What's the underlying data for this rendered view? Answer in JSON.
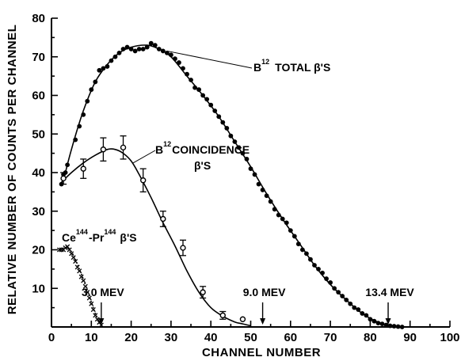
{
  "chart_data": {
    "type": "scatter",
    "xlabel": "CHANNEL NUMBER",
    "ylabel": "RELATIVE NUMBER OF COUNTS PER CHANNEL",
    "xlim": [
      0,
      100
    ],
    "ylim": [
      0,
      80
    ],
    "x_ticks": [
      "0",
      "10",
      "20",
      "30",
      "40",
      "50",
      "60",
      "70",
      "80",
      "90",
      "100"
    ],
    "y_ticks": [
      "10",
      "20",
      "30",
      "40",
      "50",
      "60",
      "70",
      "80"
    ],
    "series": [
      {
        "name": "B12 TOTAL β'S",
        "marker": "filled-circle",
        "points": [
          [
            2.5,
            37
          ],
          [
            3,
            39.5
          ],
          [
            3.5,
            40
          ],
          [
            4,
            42
          ],
          [
            6,
            48.5
          ],
          [
            7,
            52
          ],
          [
            8,
            55
          ],
          [
            9,
            58.5
          ],
          [
            10,
            61.5
          ],
          [
            11,
            63.5
          ],
          [
            12,
            66.5
          ],
          [
            13,
            67
          ],
          [
            14,
            67.5
          ],
          [
            15,
            69
          ],
          [
            16,
            70
          ],
          [
            17,
            71
          ],
          [
            18,
            72
          ],
          [
            19,
            72.5
          ],
          [
            20,
            72
          ],
          [
            21,
            71.5
          ],
          [
            22,
            72
          ],
          [
            23,
            72
          ],
          [
            24,
            72.5
          ],
          [
            25,
            73.5
          ],
          [
            26,
            73
          ],
          [
            27,
            72
          ],
          [
            28,
            71.5
          ],
          [
            29,
            71
          ],
          [
            30,
            70.5
          ],
          [
            31,
            69.5
          ],
          [
            32,
            68.5
          ],
          [
            33,
            67
          ],
          [
            34,
            65.5
          ],
          [
            35,
            64
          ],
          [
            36,
            62
          ],
          [
            37,
            61.5
          ],
          [
            38,
            60
          ],
          [
            39,
            59
          ],
          [
            40,
            57.5
          ],
          [
            41,
            56
          ],
          [
            42,
            54.5
          ],
          [
            43,
            53
          ],
          [
            44,
            51.5
          ],
          [
            45,
            49.5
          ],
          [
            46,
            48
          ],
          [
            47,
            46.5
          ],
          [
            48,
            45
          ],
          [
            49,
            43.5
          ],
          [
            50,
            41
          ],
          [
            51,
            39.5
          ],
          [
            52,
            37
          ],
          [
            53,
            35.5
          ],
          [
            54,
            34
          ],
          [
            55,
            32.5
          ],
          [
            56,
            30.5
          ],
          [
            57,
            29
          ],
          [
            58,
            28
          ],
          [
            59,
            27
          ],
          [
            60,
            25
          ],
          [
            61,
            23.5
          ],
          [
            62,
            21.5
          ],
          [
            63,
            20
          ],
          [
            64,
            19
          ],
          [
            65,
            17.5
          ],
          [
            66,
            16
          ],
          [
            67,
            15
          ],
          [
            68,
            14
          ],
          [
            69,
            12.5
          ],
          [
            70,
            11.5
          ],
          [
            71,
            10
          ],
          [
            72,
            9
          ],
          [
            73,
            8
          ],
          [
            74,
            7
          ],
          [
            75,
            6
          ],
          [
            76,
            5
          ],
          [
            77,
            4.5
          ],
          [
            78,
            3.5
          ],
          [
            79,
            3
          ],
          [
            80,
            2
          ],
          [
            81,
            1.5
          ],
          [
            82,
            1
          ],
          [
            83,
            0.8
          ],
          [
            84,
            0.5
          ],
          [
            85,
            0.3
          ],
          [
            86,
            0.2
          ],
          [
            87,
            0.1
          ],
          [
            88,
            0
          ]
        ],
        "curve": [
          [
            3,
            38
          ],
          [
            5,
            46
          ],
          [
            8,
            56
          ],
          [
            11,
            63.5
          ],
          [
            14,
            68
          ],
          [
            17,
            71
          ],
          [
            20,
            72.5
          ],
          [
            24,
            73
          ],
          [
            27,
            72
          ],
          [
            30,
            70
          ],
          [
            34,
            65
          ],
          [
            38,
            60
          ],
          [
            42,
            54.5
          ],
          [
            46,
            48
          ],
          [
            50,
            41.5
          ],
          [
            54,
            34.5
          ],
          [
            58,
            28
          ],
          [
            62,
            22
          ],
          [
            66,
            16
          ],
          [
            70,
            11
          ],
          [
            74,
            7
          ],
          [
            78,
            3.5
          ],
          [
            82,
            1.2
          ],
          [
            86,
            0.2
          ],
          [
            88,
            0
          ]
        ]
      },
      {
        "name": "B12 COINCIDENCE β'S",
        "marker": "open-circle",
        "points": [
          {
            "x": 3,
            "y": 38.5,
            "err": 1.5
          },
          {
            "x": 8,
            "y": 41,
            "err": 2.5
          },
          {
            "x": 13,
            "y": 46,
            "err": 3
          },
          {
            "x": 18,
            "y": 46.5,
            "err": 3
          },
          {
            "x": 23,
            "y": 38,
            "err": 3
          },
          {
            "x": 28,
            "y": 28,
            "err": 2
          },
          {
            "x": 33,
            "y": 20.5,
            "err": 2
          },
          {
            "x": 38,
            "y": 9,
            "err": 1.5
          },
          {
            "x": 43,
            "y": 3,
            "err": 1
          },
          {
            "x": 48,
            "y": 2,
            "err": 0
          }
        ],
        "curve": [
          [
            2.5,
            37.5
          ],
          [
            5,
            40
          ],
          [
            8,
            42.5
          ],
          [
            11,
            44.5
          ],
          [
            14,
            46
          ],
          [
            16,
            46
          ],
          [
            18,
            45
          ],
          [
            20,
            43
          ],
          [
            22,
            39.5
          ],
          [
            25,
            33.5
          ],
          [
            28,
            27
          ],
          [
            31,
            21
          ],
          [
            34,
            14.5
          ],
          [
            37,
            9
          ],
          [
            40,
            5
          ],
          [
            43,
            2.8
          ],
          [
            46,
            1.3
          ],
          [
            48,
            0.8
          ],
          [
            50,
            0.3
          ]
        ]
      },
      {
        "name": "Ce144-Pr144 β'S",
        "marker": "x",
        "points": [
          [
            2,
            20
          ],
          [
            2.5,
            20
          ],
          [
            3,
            20
          ],
          [
            3.5,
            20.5
          ],
          [
            4,
            20.8
          ],
          [
            4.5,
            20
          ],
          [
            5,
            19
          ],
          [
            5.5,
            18
          ],
          [
            6,
            17
          ],
          [
            6.5,
            15.5
          ],
          [
            7,
            14.5
          ],
          [
            7.5,
            13
          ],
          [
            8,
            12
          ],
          [
            8.5,
            10.5
          ],
          [
            9,
            9
          ],
          [
            9.5,
            7.5
          ],
          [
            10,
            6
          ],
          [
            10.5,
            4.5
          ],
          [
            11,
            3
          ],
          [
            11.5,
            2
          ],
          [
            12,
            1.2
          ],
          [
            12.5,
            0.5
          ]
        ],
        "curve": [
          [
            2,
            20
          ],
          [
            3.5,
            20.5
          ],
          [
            5,
            19.5
          ],
          [
            7,
            15
          ],
          [
            9,
            9.5
          ],
          [
            11,
            3.5
          ],
          [
            12.5,
            0.5
          ]
        ]
      }
    ],
    "annotations": {
      "total_label": {
        "base": "B",
        "sup": "12",
        "text": "TOTAL β'S"
      },
      "coinc_label": {
        "base": "B",
        "sup": "12",
        "line1": "COINCIDENCE",
        "line2": "β'S"
      },
      "ce_label": {
        "base1": "Ce",
        "sup1": "144",
        "mid": "-Pr",
        "sup2": "144",
        "tail": "β'S"
      },
      "endpoints": [
        {
          "label": "3.0 MEV",
          "x": 12.5
        },
        {
          "label": "9.0 MEV",
          "x": 53
        },
        {
          "label": "13.4 MEV",
          "x": 84.5
        }
      ]
    }
  }
}
